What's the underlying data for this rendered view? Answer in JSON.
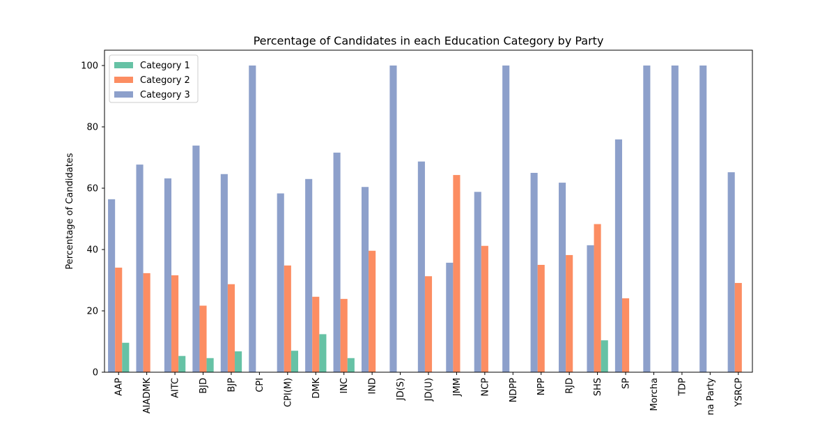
{
  "chart_data": {
    "type": "bar",
    "title": "Percentage of Candidates in each Education Category by Party",
    "xlabel": "",
    "ylabel": "Percentage of Candidates",
    "ylim": [
      0,
      105
    ],
    "yticks": [
      0,
      20,
      40,
      60,
      80,
      100
    ],
    "grid": false,
    "legend_position": "top-left",
    "categories": [
      "AAP",
      "AIADMK",
      "AITC",
      "BJD",
      "BJP",
      "CPI",
      "CPI(M)",
      "DMK",
      "INC",
      "IND",
      "JD(S)",
      "JD(U)",
      "JMM",
      "NCP",
      "NDPP",
      "NPP",
      "RJD",
      "SHS",
      "SP",
      "Morcha",
      "TDP",
      "na Party",
      "YSRCP"
    ],
    "series": [
      {
        "name": "Category 3",
        "color": "#8da0cb",
        "values": [
          56.4,
          67.7,
          63.2,
          73.9,
          64.6,
          100,
          58.3,
          63.0,
          71.6,
          60.4,
          100,
          68.7,
          35.7,
          58.8,
          100,
          65.0,
          61.8,
          41.4,
          75.9,
          100,
          100,
          100,
          65.2
        ]
      },
      {
        "name": "Category 2",
        "color": "#fc8d62",
        "values": [
          34.1,
          32.3,
          31.6,
          21.7,
          28.7,
          0,
          34.8,
          24.6,
          23.9,
          39.6,
          0,
          31.3,
          64.3,
          41.2,
          0,
          35.0,
          38.2,
          48.3,
          24.1,
          0,
          0,
          0,
          29.1
        ]
      },
      {
        "name": "Category 1",
        "color": "#66c2a5",
        "values": [
          9.6,
          0,
          5.3,
          4.6,
          6.8,
          0,
          7.0,
          12.4,
          4.6,
          0,
          0,
          0,
          0,
          0,
          0,
          0,
          0,
          10.4,
          0,
          0,
          0,
          0,
          0
        ]
      }
    ],
    "legend": [
      "Category 1",
      "Category 2",
      "Category 3"
    ]
  }
}
